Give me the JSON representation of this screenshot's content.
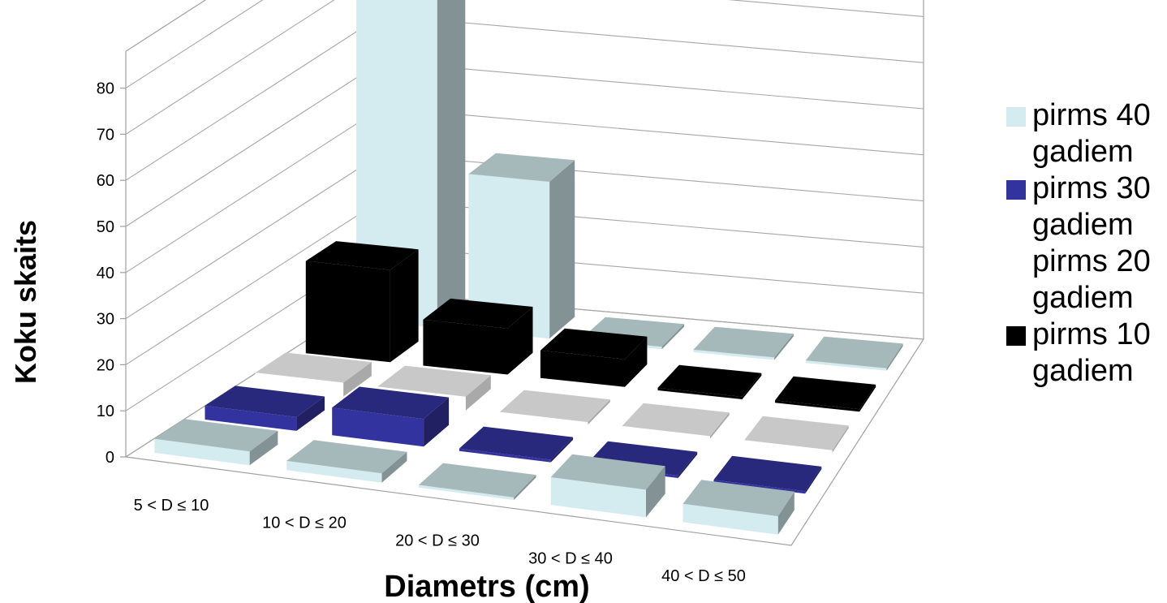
{
  "chart_data": {
    "type": "bar",
    "categories": [
      "5 < D ≤ 10",
      "10 < D ≤ 20",
      "20 < D ≤ 30",
      "30 < D ≤ 40",
      "40 < D ≤ 50"
    ],
    "series": [
      {
        "name": "pirms 40 gadiem",
        "color": "#D4ECEF",
        "values": [
          3,
          2,
          0,
          6,
          4
        ]
      },
      {
        "name": "pirms 30 gadiem",
        "color": "#3333A0",
        "values": [
          3,
          6,
          0,
          0,
          0
        ]
      },
      {
        "name": "pirms 20 gadiem",
        "color": "#FFFFFF",
        "values": [
          3,
          3,
          0,
          0,
          0
        ]
      },
      {
        "name": "pirms 10 gadiem",
        "color": "#000000",
        "values": [
          20,
          10,
          6,
          0,
          0
        ]
      },
      {
        "name": "",
        "color": "#D4ECEF",
        "values": [
          77,
          34,
          0,
          0,
          0
        ]
      }
    ],
    "ylabel": "Koku skaits",
    "xlabel": "Diametrs (cm)",
    "yticks": [
      0,
      10,
      20,
      30,
      40,
      50,
      60,
      70,
      80
    ],
    "ylim": [
      0,
      80
    ],
    "legend_position": "right",
    "grid": true
  },
  "legend": [
    {
      "line1": "pirms 40",
      "line2": "gadiem",
      "color": "#D4ECEF"
    },
    {
      "line1": "pirms 30",
      "line2": "gadiem",
      "color": "#3333A0"
    },
    {
      "line1": "pirms 20",
      "line2": "gadiem",
      "color": "#FFFFFF"
    },
    {
      "line1": "pirms 10",
      "line2": "gadiem",
      "color": "#000000"
    }
  ]
}
